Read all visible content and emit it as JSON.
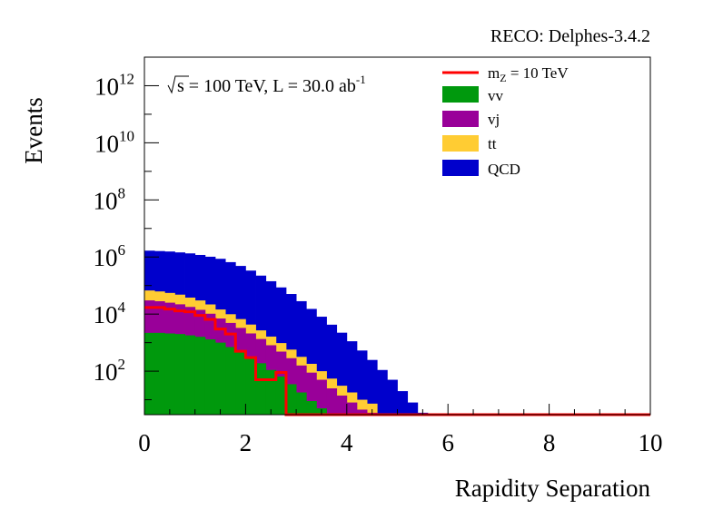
{
  "chart_data": {
    "type": "histogram-stacked",
    "top_label": "RECO: Delphes-3.4.2",
    "annotation": {
      "sqrt_s": "s",
      "text": " = 100 TeV, L = 30.0 ab",
      "sup": "-1"
    },
    "xlabel": "Rapidity Separation",
    "ylabel": "Events",
    "x_ticks": [
      "0",
      "2",
      "4",
      "6",
      "8",
      "10"
    ],
    "y_ticks": [
      {
        "base": "10",
        "exp": "2",
        "value": 100
      },
      {
        "base": "10",
        "exp": "4",
        "value": 10000
      },
      {
        "base": "10",
        "exp": "6",
        "value": 1000000
      },
      {
        "base": "10",
        "exp": "8",
        "value": 100000000
      },
      {
        "base": "10",
        "exp": "10",
        "value": 10000000000
      },
      {
        "base": "10",
        "exp": "12",
        "value": 1000000000000
      }
    ],
    "xlim": [
      0,
      10
    ],
    "ylim": [
      3,
      10000000000000
    ],
    "log_y": true,
    "bin_width": 0.2,
    "legend": {
      "placement": "top-right",
      "signal": {
        "pre": "m",
        "sub": "Z",
        "post": " = 10 TeV"
      },
      "entries": [
        "vv",
        "vj",
        "tt",
        "QCD"
      ]
    },
    "series": [
      {
        "name": "vv",
        "color": "#00990d",
        "values": [
          2200,
          2200,
          2100,
          2000,
          1800,
          1600,
          1300,
          1000,
          700,
          480,
          300,
          190,
          110,
          65,
          35,
          18,
          9,
          5
        ]
      },
      {
        "name": "vj",
        "color": "#990099",
        "values": [
          28000,
          26000,
          23000,
          20000,
          16000,
          12500,
          9000,
          6000,
          4200,
          2800,
          1800,
          1150,
          700,
          420,
          250,
          140,
          80,
          45,
          25,
          14,
          8,
          4.5,
          3.5
        ]
      },
      {
        "name": "tt",
        "color": "#ffcc33",
        "values": [
          37000,
          34000,
          30000,
          26000,
          20000,
          16000,
          11500,
          7500,
          5000,
          3400,
          2200,
          1350,
          820,
          480,
          285,
          160,
          92,
          50,
          30,
          17,
          10,
          5.5,
          3.8
        ]
      },
      {
        "name": "QCD",
        "color": "#0000cc",
        "values": [
          1600000,
          1550000,
          1500000,
          1400000,
          1300000,
          1150000,
          1000000,
          850000,
          650000,
          480000,
          330000,
          220000,
          140000,
          85000,
          50000,
          28000,
          15000,
          8000,
          4200,
          2200,
          1100,
          520,
          240,
          110,
          50,
          20,
          8,
          3.5
        ]
      }
    ],
    "signal": {
      "name": "mZ = 10 TeV",
      "color": "#ff0000",
      "values": [
        17000,
        17000,
        15000,
        13000,
        12000,
        9000,
        6500,
        3000,
        2000,
        500,
        300,
        50,
        50,
        90,
        3,
        3,
        3,
        3,
        3,
        3,
        3,
        3,
        3,
        3,
        3,
        3,
        3,
        3,
        3,
        3,
        3,
        3,
        3,
        3,
        3,
        3,
        3,
        3,
        3,
        3,
        3,
        3,
        3,
        3,
        3,
        3,
        3,
        3,
        3,
        3
      ]
    }
  }
}
